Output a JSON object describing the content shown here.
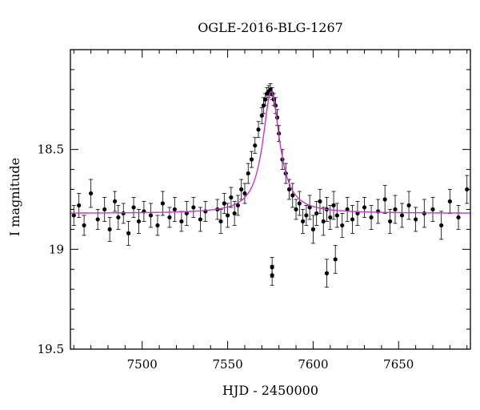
{
  "chart_data": {
    "type": "scatter",
    "title": "OGLE-2016-BLG-1267",
    "xlabel": "HJD - 2450000",
    "ylabel": "I magnitude",
    "xlim": [
      7458,
      7692
    ],
    "ylim": [
      19.5,
      18.0
    ],
    "y_inverted": true,
    "x_ticks": [
      7500,
      7550,
      7600,
      7650
    ],
    "x_tick_labels": [
      "7500",
      "7550",
      "7600",
      "7650"
    ],
    "y_ticks": [
      18.5,
      19,
      19.5
    ],
    "y_tick_labels": [
      "18.5",
      "19",
      "19.5"
    ],
    "grid": false,
    "legend": "none",
    "colors": {
      "data": "#000000",
      "model": "#cc33cc"
    },
    "series": [
      {
        "kind": "points_with_errorbars",
        "x": [
          7460,
          7463,
          7466,
          7470,
          7474,
          7478,
          7481,
          7484,
          7486,
          7489,
          7492,
          7495,
          7498,
          7501,
          7505,
          7509,
          7512,
          7516,
          7519,
          7523,
          7526,
          7530,
          7534,
          7537,
          7544,
          7546,
          7548,
          7550,
          7552,
          7554,
          7556,
          7558,
          7560,
          7562,
          7564,
          7566,
          7568,
          7570,
          7571,
          7572,
          7573,
          7574,
          7575,
          7576,
          7577,
          7578,
          7579,
          7580,
          7582,
          7584,
          7586,
          7588,
          7590,
          7592,
          7594,
          7596,
          7598,
          7600,
          7602,
          7604,
          7606,
          7608,
          7610,
          7612,
          7614,
          7617,
          7620,
          7623,
          7626,
          7630,
          7634,
          7638,
          7642,
          7645,
          7648,
          7652,
          7656,
          7660,
          7665,
          7670,
          7675,
          7680,
          7685,
          7690
        ],
        "y": [
          18.83,
          18.78,
          18.88,
          18.72,
          18.85,
          18.8,
          18.9,
          18.76,
          18.84,
          18.82,
          18.92,
          18.79,
          18.86,
          18.81,
          18.83,
          18.88,
          18.77,
          18.84,
          18.8,
          18.86,
          18.82,
          18.79,
          18.85,
          18.81,
          18.8,
          18.86,
          18.77,
          18.83,
          18.74,
          18.82,
          18.78,
          18.7,
          18.72,
          18.62,
          18.55,
          18.48,
          18.4,
          18.33,
          18.28,
          18.25,
          18.22,
          18.21,
          18.2,
          18.22,
          18.25,
          18.28,
          18.34,
          18.42,
          18.55,
          18.62,
          18.7,
          18.73,
          18.8,
          18.77,
          18.86,
          18.83,
          18.79,
          18.9,
          18.82,
          18.76,
          18.86,
          18.8,
          18.84,
          18.78,
          18.83,
          18.88,
          18.8,
          18.85,
          18.82,
          18.79,
          18.84,
          18.81,
          18.75,
          18.86,
          18.8,
          18.83,
          18.78,
          18.85,
          18.82,
          18.8,
          18.88,
          18.76,
          18.84,
          18.7
        ],
        "err": [
          0.05,
          0.06,
          0.05,
          0.07,
          0.05,
          0.06,
          0.06,
          0.05,
          0.06,
          0.05,
          0.06,
          0.05,
          0.06,
          0.05,
          0.06,
          0.05,
          0.06,
          0.05,
          0.06,
          0.05,
          0.06,
          0.05,
          0.06,
          0.05,
          0.05,
          0.06,
          0.05,
          0.06,
          0.05,
          0.06,
          0.05,
          0.05,
          0.05,
          0.05,
          0.04,
          0.04,
          0.04,
          0.04,
          0.04,
          0.03,
          0.03,
          0.03,
          0.03,
          0.03,
          0.03,
          0.04,
          0.04,
          0.04,
          0.05,
          0.05,
          0.05,
          0.06,
          0.05,
          0.06,
          0.06,
          0.05,
          0.06,
          0.07,
          0.06,
          0.06,
          0.07,
          0.06,
          0.06,
          0.07,
          0.06,
          0.06,
          0.06,
          0.07,
          0.06,
          0.05,
          0.06,
          0.06,
          0.07,
          0.06,
          0.07,
          0.06,
          0.07,
          0.06,
          0.07,
          0.06,
          0.07,
          0.06,
          0.06,
          0.07
        ]
      },
      {
        "kind": "outliers",
        "x": [
          7576,
          7576,
          7608,
          7613
        ],
        "y": [
          19.13,
          19.09,
          19.12,
          19.05
        ],
        "err": [
          0.05,
          0.05,
          0.07,
          0.07
        ]
      },
      {
        "kind": "model_curve",
        "peak_x": 7575.5,
        "peak_mag": 18.21,
        "baseline_mag": 18.82,
        "halfwidth_days": 6
      }
    ]
  }
}
